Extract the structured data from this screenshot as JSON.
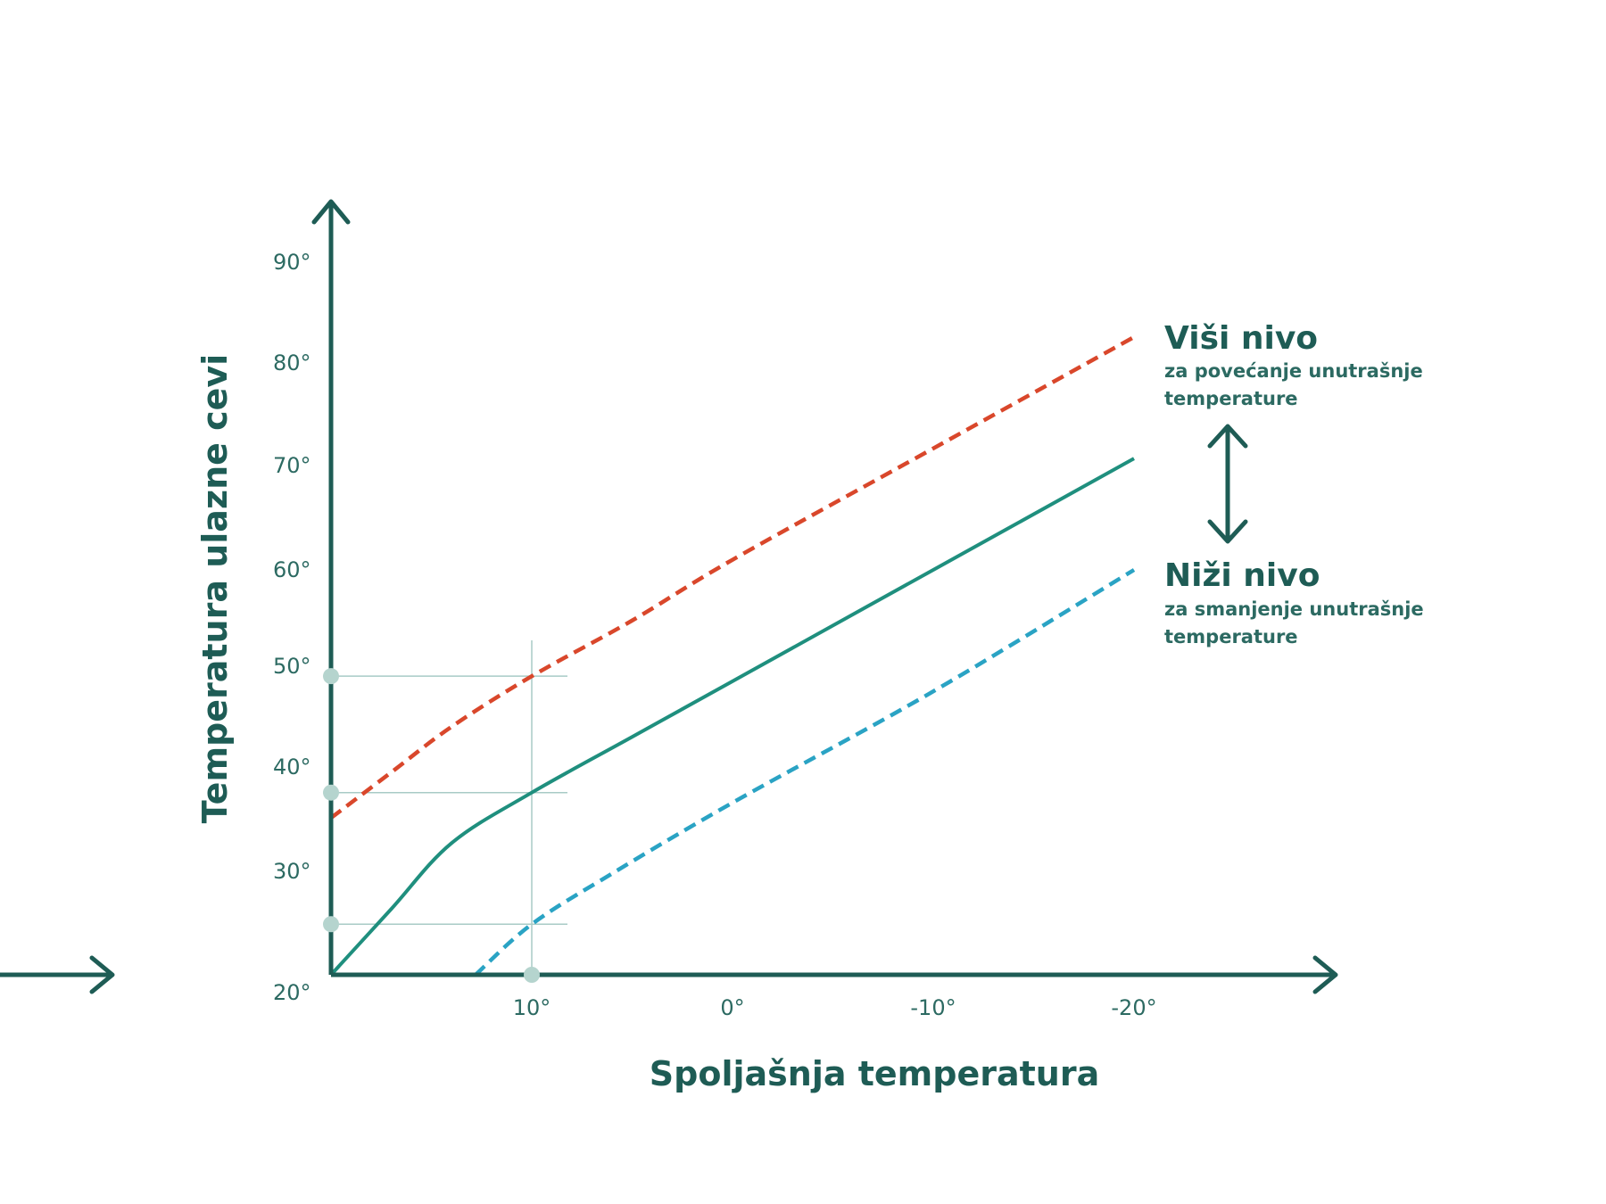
{
  "chart_data": {
    "type": "line",
    "xlabel": "Spoljašnja temperatura",
    "ylabel": "Temperatura ulazne cevi",
    "x_ticks": [
      "10°",
      "0°",
      "-10°",
      "-20°"
    ],
    "y_ticks": [
      "20°",
      "30°",
      "40°",
      "50°",
      "60°",
      "70°",
      "80°",
      "90°"
    ],
    "xlim": [
      20,
      -20
    ],
    "ylim": [
      20,
      90
    ],
    "series": [
      {
        "style": "dashed",
        "color": "#d9472b",
        "points": [
          [
            20,
            35.5
          ],
          [
            17,
            40
          ],
          [
            14,
            44.5
          ],
          [
            10,
            49.5
          ],
          [
            5,
            55
          ],
          [
            0,
            61
          ],
          [
            -10,
            72
          ],
          [
            -20,
            83
          ]
        ]
      },
      {
        "style": "solid",
        "color": "#1f8f7e",
        "points": [
          [
            20,
            20
          ],
          [
            17,
            26.5
          ],
          [
            14,
            33
          ],
          [
            10,
            38
          ],
          [
            5,
            43.5
          ],
          [
            0,
            49
          ],
          [
            -10,
            60
          ],
          [
            -20,
            71
          ]
        ]
      },
      {
        "style": "dashed",
        "color": "#2aa3c4",
        "points": [
          [
            12.8,
            20
          ],
          [
            10,
            25
          ],
          [
            6,
            30
          ],
          [
            0,
            37
          ],
          [
            -10,
            48
          ],
          [
            -20,
            60
          ]
        ]
      }
    ],
    "reference_x": 10,
    "reference_y": [
      25,
      38,
      49.5
    ],
    "annotations": [
      {
        "title": "Viši nivo",
        "lines": [
          "za povećanje unutrašnje",
          "temperature"
        ]
      },
      {
        "title": "Niži nivo",
        "lines": [
          "za smanjenje unutrašnje",
          "temperature"
        ]
      }
    ]
  },
  "colors": {
    "axis": "#1e5c55",
    "grid": "#a8cbc6",
    "marker": "#b5d4ce"
  }
}
